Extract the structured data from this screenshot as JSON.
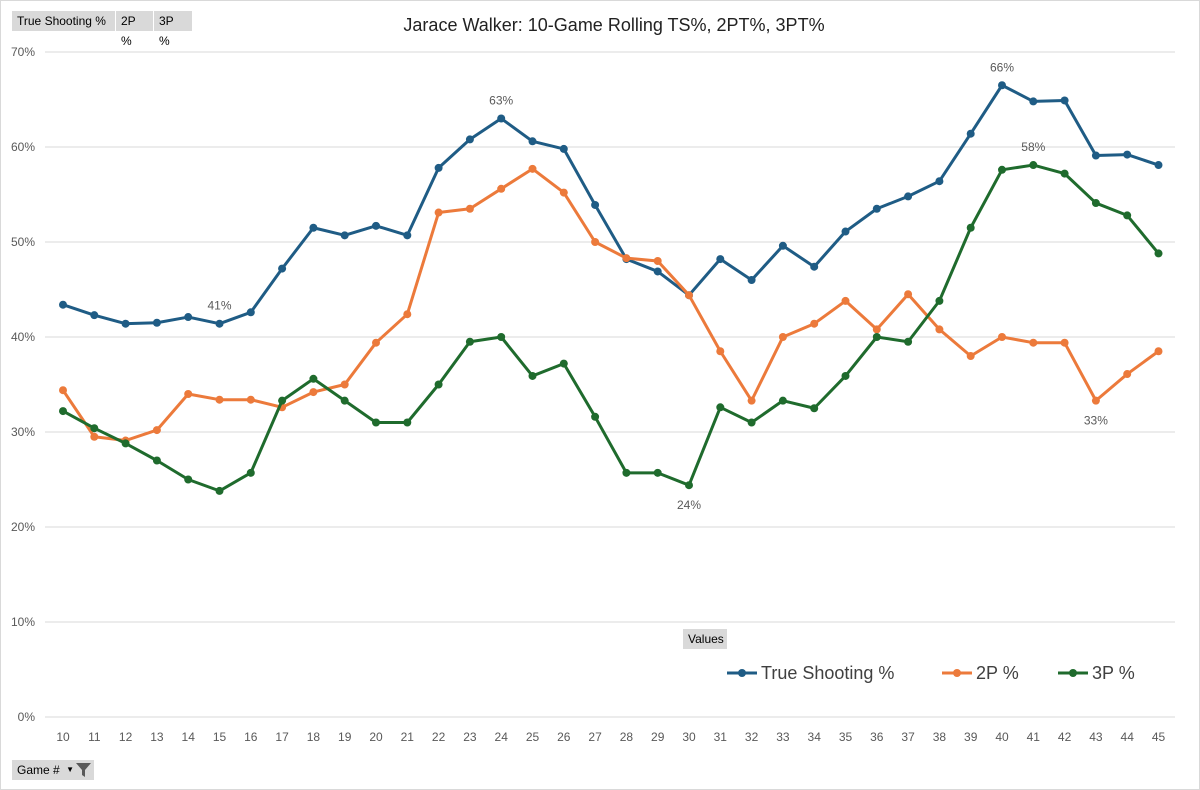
{
  "field_buttons": {
    "ts": "True Shooting %",
    "p2": "2P %",
    "p3": "3P %",
    "values": "Values",
    "game": "Game #"
  },
  "colors": {
    "ts": "#1f5c85",
    "p2": "#ec7a3b",
    "p3": "#1f6b2d",
    "grid": "#d9d9d9"
  },
  "chart_data": {
    "type": "line",
    "title": "Jarace Walker: 10-Game Rolling TS%, 2PT%, 3PT%",
    "xlabel": "",
    "ylabel": "",
    "ylim": [
      0,
      70
    ],
    "yticks": [
      "0%",
      "10%",
      "20%",
      "30%",
      "40%",
      "50%",
      "60%",
      "70%"
    ],
    "ytick_values": [
      0,
      10,
      20,
      30,
      40,
      50,
      60,
      70
    ],
    "grid": true,
    "legend_position": "bottom-right",
    "categories": [
      "10",
      "11",
      "12",
      "13",
      "14",
      "15",
      "16",
      "17",
      "18",
      "19",
      "20",
      "21",
      "22",
      "23",
      "24",
      "25",
      "26",
      "27",
      "28",
      "29",
      "30",
      "31",
      "32",
      "33",
      "34",
      "35",
      "36",
      "37",
      "38",
      "39",
      "40",
      "41",
      "42",
      "43",
      "44",
      "45"
    ],
    "series": [
      {
        "name": "True Shooting %",
        "key": "ts",
        "values": [
          43.4,
          42.3,
          41.4,
          41.5,
          42.1,
          41.4,
          42.6,
          47.2,
          51.5,
          50.7,
          51.7,
          50.7,
          57.8,
          60.8,
          63.0,
          60.6,
          59.8,
          53.9,
          48.2,
          46.9,
          44.4,
          48.2,
          46.0,
          49.6,
          47.4,
          51.1,
          53.5,
          54.8,
          56.4,
          61.4,
          66.5,
          64.8,
          64.9,
          59.1,
          59.2,
          58.1
        ]
      },
      {
        "name": "2P %",
        "key": "p2",
        "values": [
          34.4,
          29.5,
          29.1,
          30.2,
          34.0,
          33.4,
          33.4,
          32.6,
          34.2,
          35.0,
          39.4,
          42.4,
          53.1,
          53.5,
          55.6,
          57.7,
          55.2,
          50.0,
          48.3,
          48.0,
          44.4,
          38.5,
          33.3,
          40.0,
          41.4,
          43.8,
          40.8,
          44.5,
          40.8,
          38.0,
          40.0,
          39.4,
          39.4,
          33.3,
          36.1,
          38.5
        ]
      },
      {
        "name": "3P %",
        "key": "p3",
        "values": [
          32.2,
          30.4,
          28.8,
          27.0,
          25.0,
          23.8,
          25.7,
          33.3,
          35.6,
          33.3,
          31.0,
          31.0,
          35.0,
          39.5,
          40.0,
          35.9,
          37.2,
          31.6,
          25.7,
          25.7,
          24.4,
          32.6,
          31.0,
          33.3,
          32.5,
          35.9,
          40.0,
          39.5,
          43.8,
          51.5,
          57.6,
          58.1,
          57.2,
          54.1,
          52.8,
          48.8
        ]
      }
    ],
    "data_labels": [
      {
        "series": "ts",
        "index": 5,
        "text": "41%",
        "pos": "above"
      },
      {
        "series": "ts",
        "index": 14,
        "text": "63%",
        "pos": "above"
      },
      {
        "series": "ts",
        "index": 30,
        "text": "66%",
        "pos": "above"
      },
      {
        "series": "p3",
        "index": 20,
        "text": "24%",
        "pos": "below"
      },
      {
        "series": "p3",
        "index": 31,
        "text": "58%",
        "pos": "above"
      },
      {
        "series": "p2",
        "index": 33,
        "text": "33%",
        "pos": "below"
      }
    ]
  }
}
